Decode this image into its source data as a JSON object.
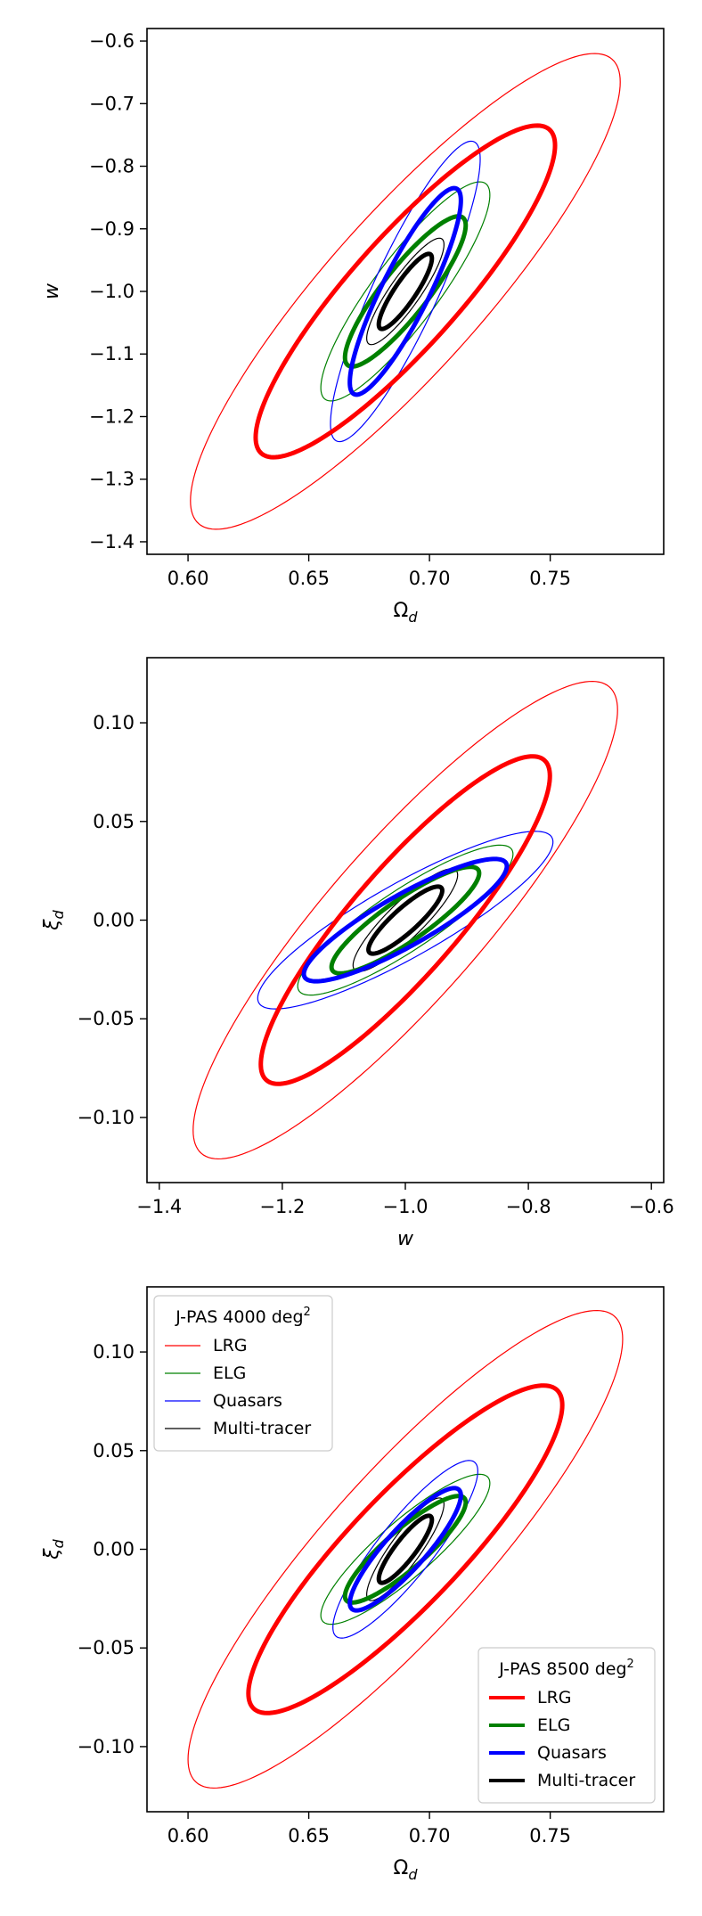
{
  "colors": {
    "LRG": "#ff0000",
    "ELG": "#008000",
    "Quasars": "#0000ff",
    "Multi-tracer": "#000000"
  },
  "chart_data": [
    {
      "type": "scatter",
      "name_hint": "panel-omega-w",
      "xlabel_base": "Ω",
      "xlabel_sub": "d",
      "ylabel_base": "w",
      "ylabel_sub": "",
      "xlim": [
        0.583,
        0.797
      ],
      "ylim": [
        -1.42,
        -0.58
      ],
      "xticks": [
        0.6,
        0.65,
        0.7,
        0.75
      ],
      "xtick_labels": [
        "0.60",
        "0.65",
        "0.70",
        "0.75"
      ],
      "yticks": [
        -1.4,
        -1.3,
        -1.2,
        -1.1,
        -1.0,
        -0.9,
        -0.8,
        -0.7,
        -0.6
      ],
      "ytick_labels": [
        "−1.4",
        "−1.3",
        "−1.2",
        "−1.1",
        "−1.0",
        "−0.9",
        "−0.8",
        "−0.7",
        "−0.6"
      ],
      "series": [
        {
          "name": "LRG",
          "survey": "J-PAS 4000 deg2",
          "ellipse": {
            "cx": 0.69,
            "cy": -1.0,
            "xmin": 0.6,
            "xmax": 0.778,
            "ymin": -1.38,
            "ymax": -0.62
          }
        },
        {
          "name": "ELG",
          "survey": "J-PAS 4000 deg2",
          "ellipse": {
            "cx": 0.69,
            "cy": -1.0,
            "xmin": 0.654,
            "xmax": 0.724,
            "ymin": -1.175,
            "ymax": -0.825
          }
        },
        {
          "name": "Quasars",
          "survey": "J-PAS 4000 deg2",
          "ellipse": {
            "cx": 0.69,
            "cy": -1.0,
            "xmin": 0.658,
            "xmax": 0.72,
            "ymin": -1.24,
            "ymax": -0.76
          }
        },
        {
          "name": "Multi-tracer",
          "survey": "J-PAS 4000 deg2",
          "ellipse": {
            "cx": 0.69,
            "cy": -1.0,
            "xmin": 0.674,
            "xmax": 0.706,
            "ymin": -1.085,
            "ymax": -0.915
          }
        },
        {
          "name": "LRG",
          "survey": "J-PAS 8500 deg2",
          "ellipse": {
            "cx": 0.69,
            "cy": -1.0,
            "xmin": 0.628,
            "xmax": 0.752,
            "ymin": -1.265,
            "ymax": -0.735
          }
        },
        {
          "name": "ELG",
          "survey": "J-PAS 8500 deg2",
          "ellipse": {
            "cx": 0.69,
            "cy": -1.0,
            "xmin": 0.665,
            "xmax": 0.715,
            "ymin": -1.12,
            "ymax": -0.88
          }
        },
        {
          "name": "Quasars",
          "survey": "J-PAS 8500 deg2",
          "ellipse": {
            "cx": 0.69,
            "cy": -1.0,
            "xmin": 0.667,
            "xmax": 0.713,
            "ymin": -1.165,
            "ymax": -0.835
          }
        },
        {
          "name": "Multi-tracer",
          "survey": "J-PAS 8500 deg2",
          "ellipse": {
            "cx": 0.69,
            "cy": -1.0,
            "xmin": 0.679,
            "xmax": 0.701,
            "ymin": -1.06,
            "ymax": -0.94
          }
        }
      ],
      "legend": null
    },
    {
      "type": "scatter",
      "name_hint": "panel-w-xi",
      "xlabel_base": "w",
      "xlabel_sub": "",
      "ylabel_base": "ξ",
      "ylabel_sub": "d",
      "xlim": [
        -1.42,
        -0.58
      ],
      "ylim": [
        -0.133,
        0.133
      ],
      "xticks": [
        -1.4,
        -1.2,
        -1.0,
        -0.8,
        -0.6
      ],
      "xtick_labels": [
        "−1.4",
        "−1.2",
        "−1.0",
        "−0.8",
        "−0.6"
      ],
      "yticks": [
        -0.1,
        -0.05,
        0.0,
        0.05,
        0.1
      ],
      "ytick_labels": [
        "−0.10",
        "−0.05",
        "0.00",
        "0.05",
        "0.10"
      ],
      "series": [
        {
          "name": "LRG",
          "survey": "J-PAS 4000 deg2",
          "ellipse": {
            "cx": -1.0,
            "cy": 0.0,
            "xmin": -1.345,
            "xmax": -0.655,
            "ymin": -0.121,
            "ymax": 0.121
          }
        },
        {
          "name": "ELG",
          "survey": "J-PAS 4000 deg2",
          "ellipse": {
            "cx": -1.0,
            "cy": 0.0,
            "xmin": -1.175,
            "xmax": -0.825,
            "ymin": -0.038,
            "ymax": 0.038
          }
        },
        {
          "name": "Quasars",
          "survey": "J-PAS 4000 deg2",
          "ellipse": {
            "cx": -1.0,
            "cy": 0.0,
            "xmin": -1.24,
            "xmax": -0.76,
            "ymin": -0.045,
            "ymax": 0.045
          }
        },
        {
          "name": "Multi-tracer",
          "survey": "J-PAS 4000 deg2",
          "ellipse": {
            "cx": -1.0,
            "cy": 0.0,
            "xmin": -1.085,
            "xmax": -0.915,
            "ymin": -0.026,
            "ymax": 0.026
          }
        },
        {
          "name": "LRG",
          "survey": "J-PAS 8500 deg2",
          "ellipse": {
            "cx": -1.0,
            "cy": 0.0,
            "xmin": -1.235,
            "xmax": -0.765,
            "ymin": -0.083,
            "ymax": 0.083
          }
        },
        {
          "name": "ELG",
          "survey": "J-PAS 8500 deg2",
          "ellipse": {
            "cx": -1.0,
            "cy": 0.0,
            "xmin": -1.12,
            "xmax": -0.88,
            "ymin": -0.027,
            "ymax": 0.027
          }
        },
        {
          "name": "Quasars",
          "survey": "J-PAS 8500 deg2",
          "ellipse": {
            "cx": -1.0,
            "cy": 0.0,
            "xmin": -1.165,
            "xmax": -0.835,
            "ymin": -0.031,
            "ymax": 0.031
          }
        },
        {
          "name": "Multi-tracer",
          "survey": "J-PAS 8500 deg2",
          "ellipse": {
            "cx": -1.0,
            "cy": 0.0,
            "xmin": -1.06,
            "xmax": -0.94,
            "ymin": -0.017,
            "ymax": 0.017
          }
        }
      ],
      "legend": null
    },
    {
      "type": "scatter",
      "name_hint": "panel-omega-xi",
      "xlabel_base": "Ω",
      "xlabel_sub": "d",
      "ylabel_base": "ξ",
      "ylabel_sub": "d",
      "xlim": [
        0.583,
        0.797
      ],
      "ylim": [
        -0.133,
        0.133
      ],
      "xticks": [
        0.6,
        0.65,
        0.7,
        0.75
      ],
      "xtick_labels": [
        "0.60",
        "0.65",
        "0.70",
        "0.75"
      ],
      "yticks": [
        -0.1,
        -0.05,
        0.0,
        0.05,
        0.1
      ],
      "ytick_labels": [
        "−0.10",
        "−0.05",
        "0.00",
        "0.05",
        "0.10"
      ],
      "series": [
        {
          "name": "LRG",
          "survey": "J-PAS 4000 deg2",
          "ellipse": {
            "cx": 0.69,
            "cy": 0.0,
            "xmin": 0.6,
            "xmax": 0.78,
            "ymin": -0.121,
            "ymax": 0.121
          }
        },
        {
          "name": "ELG",
          "survey": "J-PAS 4000 deg2",
          "ellipse": {
            "cx": 0.69,
            "cy": 0.0,
            "xmin": 0.655,
            "xmax": 0.725,
            "ymin": -0.038,
            "ymax": 0.038
          }
        },
        {
          "name": "Quasars",
          "survey": "J-PAS 4000 deg2",
          "ellipse": {
            "cx": 0.69,
            "cy": 0.0,
            "xmin": 0.66,
            "xmax": 0.72,
            "ymin": -0.045,
            "ymax": 0.045
          }
        },
        {
          "name": "Multi-tracer",
          "survey": "J-PAS 4000 deg2",
          "ellipse": {
            "cx": 0.69,
            "cy": 0.0,
            "xmin": 0.674,
            "xmax": 0.706,
            "ymin": -0.026,
            "ymax": 0.026
          }
        },
        {
          "name": "LRG",
          "survey": "J-PAS 8500 deg2",
          "ellipse": {
            "cx": 0.69,
            "cy": 0.0,
            "xmin": 0.625,
            "xmax": 0.755,
            "ymin": -0.083,
            "ymax": 0.083
          }
        },
        {
          "name": "ELG",
          "survey": "J-PAS 8500 deg2",
          "ellipse": {
            "cx": 0.69,
            "cy": 0.0,
            "xmin": 0.665,
            "xmax": 0.715,
            "ymin": -0.027,
            "ymax": 0.027
          }
        },
        {
          "name": "Quasars",
          "survey": "J-PAS 8500 deg2",
          "ellipse": {
            "cx": 0.69,
            "cy": 0.0,
            "xmin": 0.667,
            "xmax": 0.713,
            "ymin": -0.031,
            "ymax": 0.031
          }
        },
        {
          "name": "Multi-tracer",
          "survey": "J-PAS 8500 deg2",
          "ellipse": {
            "cx": 0.69,
            "cy": 0.0,
            "xmin": 0.679,
            "xmax": 0.701,
            "ymin": -0.017,
            "ymax": 0.017
          }
        }
      ],
      "legend": [
        {
          "title": "J-PAS 4000 deg",
          "title_sup": "2",
          "placement": "top-left",
          "line_style": "thin",
          "entries": [
            "LRG",
            "ELG",
            "Quasars",
            "Multi-tracer"
          ]
        },
        {
          "title": "J-PAS 8500 deg",
          "title_sup": "2",
          "placement": "bottom-right",
          "line_style": "thick",
          "entries": [
            "LRG",
            "ELG",
            "Quasars",
            "Multi-tracer"
          ]
        }
      ]
    }
  ]
}
